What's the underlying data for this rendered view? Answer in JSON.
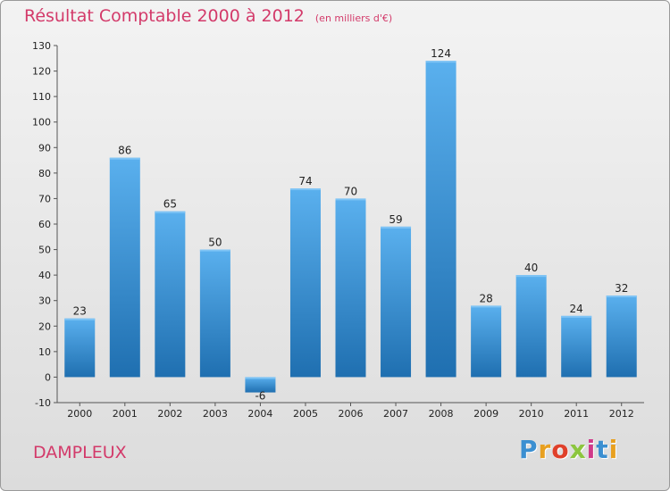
{
  "header": {
    "title": "Résultat Comptable 2000 à 2012",
    "unit": "(en milliers d'€)"
  },
  "footer": {
    "commune": "DAMPLEUX",
    "logo": "Proxiti",
    "logo_colors": [
      "#3b8fd1",
      "#e8a020",
      "#e0402a",
      "#8cc63f",
      "#d03a8a",
      "#3b8fd1",
      "#e8a020"
    ]
  },
  "chart_data": {
    "type": "bar",
    "categories": [
      "2000",
      "2001",
      "2002",
      "2003",
      "2004",
      "2005",
      "2006",
      "2007",
      "2008",
      "2009",
      "2010",
      "2011",
      "2012"
    ],
    "values": [
      23,
      86,
      65,
      50,
      -6,
      74,
      70,
      59,
      124,
      28,
      40,
      24,
      32
    ],
    "title": "Résultat Comptable 2000 à 2012",
    "subtitle": "(en milliers d'€)",
    "xlabel": "",
    "ylabel": "",
    "ylim": [
      -10,
      130
    ],
    "yticks": [
      -10,
      0,
      10,
      20,
      30,
      40,
      50,
      60,
      70,
      80,
      90,
      100,
      110,
      120,
      130
    ],
    "grid": false,
    "bar_color": "#4aa3e6",
    "bar_color_dark": "#1f6fb0"
  }
}
